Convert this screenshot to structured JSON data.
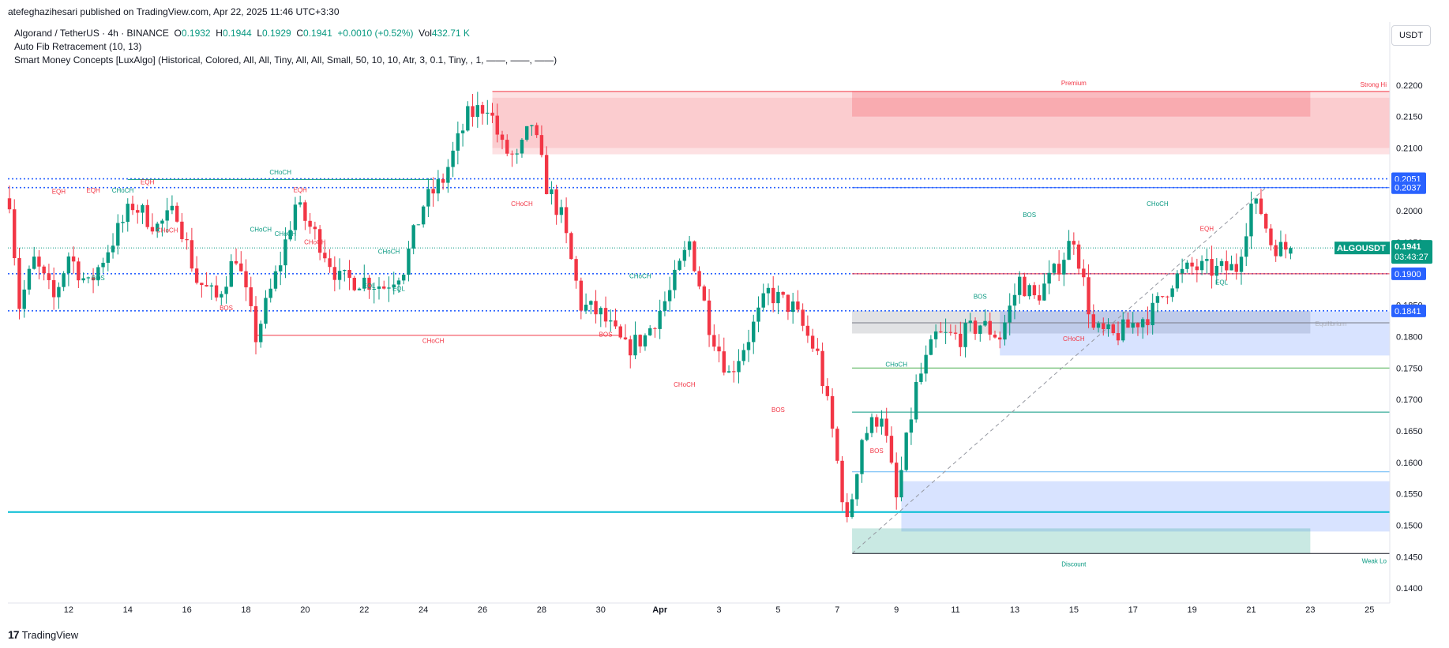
{
  "publisher_line": "atefeghazihesari published on TradingView.com, Apr 22, 2025 11:46 UTC+3:30",
  "legend": {
    "symbol": "Algorand / TetherUS · 4h · BINANCE",
    "o_label": "O",
    "o": "0.1932",
    "h_label": "H",
    "h": "0.1944",
    "l_label": "L",
    "l": "0.1929",
    "c_label": "C",
    "c": "0.1941",
    "change": "+0.0010 (+0.52%)",
    "vol_label": "Vol",
    "vol": "432.71 K",
    "indicator1": "Auto Fib Retracement (10, 13)",
    "indicator2": "Smart Money Concepts [LuxAlgo] (Historical, Colored, All, All, Tiny, All, All, Small, 50, 10, 10, Atr, 3, 0.1, Tiny, , 1, ——, ——, ——)"
  },
  "currency_button": "USDT",
  "footer_brand": "TradingView",
  "footer_mark": "17",
  "colors": {
    "up": "#089981",
    "down": "#f23645",
    "blue": "#2962ff",
    "cyan": "#00bcd4",
    "premium": "#f23645",
    "discount": "#089981",
    "equilibrium": "#787b86"
  },
  "chart_data": {
    "type": "candlestick",
    "symbol": "ALGOUSDT",
    "timeframe": "4h",
    "ylim": [
      0.1375,
      0.2235
    ],
    "y_ticks": [
      "0.2200",
      "0.2150",
      "0.2100",
      "0.2050",
      "0.2000",
      "0.1950",
      "0.1900",
      "0.1850",
      "0.1800",
      "0.1750",
      "0.1700",
      "0.1650",
      "0.1600",
      "0.1550",
      "0.1500",
      "0.1450",
      "0.1400"
    ],
    "x_ticks": [
      {
        "label": "12",
        "i": 12
      },
      {
        "label": "14",
        "i": 24
      },
      {
        "label": "16",
        "i": 36
      },
      {
        "label": "18",
        "i": 48
      },
      {
        "label": "20",
        "i": 60
      },
      {
        "label": "22",
        "i": 72
      },
      {
        "label": "24",
        "i": 84
      },
      {
        "label": "26",
        "i": 96
      },
      {
        "label": "28",
        "i": 108
      },
      {
        "label": "30",
        "i": 120
      },
      {
        "label": "Apr",
        "i": 132
      },
      {
        "label": "3",
        "i": 144
      },
      {
        "label": "5",
        "i": 156
      },
      {
        "label": "7",
        "i": 168
      },
      {
        "label": "9",
        "i": 180
      },
      {
        "label": "11",
        "i": 192
      },
      {
        "label": "13",
        "i": 204
      },
      {
        "label": "15",
        "i": 216
      },
      {
        "label": "17",
        "i": 228
      },
      {
        "label": "19",
        "i": 240
      },
      {
        "label": "21",
        "i": 252
      },
      {
        "label": "23",
        "i": 264
      },
      {
        "label": "25",
        "i": 276
      }
    ],
    "bars_total": 280,
    "path_anchors": [
      [
        0,
        0.202
      ],
      [
        2,
        0.185
      ],
      [
        5,
        0.192
      ],
      [
        9,
        0.186
      ],
      [
        12,
        0.193
      ],
      [
        16,
        0.188
      ],
      [
        20,
        0.194
      ],
      [
        25,
        0.201
      ],
      [
        30,
        0.1975
      ],
      [
        34,
        0.2
      ],
      [
        38,
        0.189
      ],
      [
        42,
        0.186
      ],
      [
        46,
        0.193
      ],
      [
        50,
        0.18
      ],
      [
        55,
        0.192
      ],
      [
        58,
        0.201
      ],
      [
        63,
        0.195
      ],
      [
        67,
        0.189
      ],
      [
        72,
        0.189
      ],
      [
        76,
        0.188
      ],
      [
        80,
        0.191
      ],
      [
        84,
        0.201
      ],
      [
        88,
        0.205
      ],
      [
        93,
        0.215
      ],
      [
        97,
        0.217
      ],
      [
        100,
        0.21
      ],
      [
        103,
        0.208
      ],
      [
        106,
        0.214
      ],
      [
        109,
        0.204
      ],
      [
        112,
        0.199
      ],
      [
        116,
        0.185
      ],
      [
        120,
        0.1835
      ],
      [
        125,
        0.178
      ],
      [
        129,
        0.18
      ],
      [
        134,
        0.187
      ],
      [
        138,
        0.195
      ],
      [
        142,
        0.182
      ],
      [
        146,
        0.174
      ],
      [
        150,
        0.18
      ],
      [
        154,
        0.187
      ],
      [
        159,
        0.1845
      ],
      [
        164,
        0.177
      ],
      [
        167,
        0.165
      ],
      [
        170,
        0.15
      ],
      [
        173,
        0.164
      ],
      [
        177,
        0.168
      ],
      [
        180,
        0.154
      ],
      [
        184,
        0.172
      ],
      [
        188,
        0.18
      ],
      [
        193,
        0.18
      ],
      [
        197,
        0.182
      ],
      [
        201,
        0.18
      ],
      [
        205,
        0.189
      ],
      [
        208,
        0.186
      ],
      [
        212,
        0.19
      ],
      [
        216,
        0.196
      ],
      [
        220,
        0.181
      ],
      [
        224,
        0.18
      ],
      [
        228,
        0.182
      ],
      [
        232,
        0.184
      ],
      [
        236,
        0.189
      ],
      [
        240,
        0.191
      ],
      [
        245,
        0.1905
      ],
      [
        249,
        0.191
      ],
      [
        252,
        0.201
      ],
      [
        254,
        0.2
      ],
      [
        256,
        0.195
      ],
      [
        258,
        0.194
      ],
      [
        260,
        0.1941
      ]
    ],
    "last_close": 0.1941,
    "high_fib": 0.219,
    "low_fib": 0.1455,
    "labels": {
      "premium": "Premium",
      "discount": "Discount",
      "equilibrium": "Equilibrium",
      "strong_high": "Strong Hi",
      "weak_low": "Weak Lo"
    },
    "structures": [
      {
        "text": "CHoCH",
        "color": "up",
        "size": "big",
        "i": 55,
        "y": 0.2058
      },
      {
        "text": "CHoCH",
        "color": "down",
        "size": "big",
        "i": 86,
        "y": 0.179
      },
      {
        "text": "EQH",
        "color": "down",
        "i": 10,
        "y": 0.2027
      },
      {
        "text": "EQH",
        "color": "down",
        "i": 17,
        "y": 0.2029
      },
      {
        "text": "CHoCH",
        "color": "up",
        "i": 23,
        "y": 0.2029
      },
      {
        "text": "EQH",
        "color": "down",
        "i": 28,
        "y": 0.2042
      },
      {
        "text": "CHoCH",
        "color": "down",
        "i": 32,
        "y": 0.1966
      },
      {
        "text": "BOS",
        "color": "up",
        "i": 18,
        "y": 0.189
      },
      {
        "text": "CHoCH",
        "color": "up",
        "i": 51,
        "y": 0.1967
      },
      {
        "text": "BOS",
        "color": "down",
        "i": 44,
        "y": 0.1842
      },
      {
        "text": "EQH",
        "color": "down",
        "i": 59,
        "y": 0.203
      },
      {
        "text": "CHoCH",
        "color": "up",
        "i": 56,
        "y": 0.196
      },
      {
        "text": "CHoCH",
        "color": "down",
        "i": 62,
        "y": 0.1947
      },
      {
        "text": "CHoCH",
        "color": "up",
        "i": 77,
        "y": 0.1932
      },
      {
        "text": "EQL",
        "color": "up",
        "i": 73,
        "y": 0.1877
      },
      {
        "text": "EQL",
        "color": "up",
        "i": 79,
        "y": 0.1873
      },
      {
        "text": "CHoCH",
        "color": "down",
        "i": 104,
        "y": 0.2008
      },
      {
        "text": "CHoCH",
        "color": "up",
        "i": 128,
        "y": 0.1893
      },
      {
        "text": "BOS",
        "color": "down",
        "i": 121,
        "y": 0.18
      },
      {
        "text": "CHoCH",
        "color": "down",
        "i": 137,
        "y": 0.172
      },
      {
        "text": "BOS",
        "color": "down",
        "i": 156,
        "y": 0.168
      },
      {
        "text": "CHoCH",
        "color": "up",
        "i": 180,
        "y": 0.1752
      },
      {
        "text": "BOS",
        "color": "down",
        "i": 176,
        "y": 0.1615
      },
      {
        "text": "BOS",
        "color": "up",
        "i": 197,
        "y": 0.186
      },
      {
        "text": "BOS",
        "color": "up",
        "i": 207,
        "y": 0.199
      },
      {
        "text": "CHoCH",
        "color": "up",
        "i": 233,
        "y": 0.2008
      },
      {
        "text": "CHoCH",
        "color": "down",
        "i": 216,
        "y": 0.1793
      },
      {
        "text": "EQH",
        "color": "down",
        "i": 243,
        "y": 0.1968
      },
      {
        "text": "EQL",
        "color": "up",
        "i": 246,
        "y": 0.1883
      }
    ],
    "price_tags": [
      {
        "text": "0.2051",
        "y": 0.2051,
        "color": "blue"
      },
      {
        "text": "0.2037",
        "y": 0.2037,
        "color": "blue"
      },
      {
        "text": "0.1900",
        "y": 0.19,
        "color": "blue"
      },
      {
        "text": "0.1841",
        "y": 0.1841,
        "color": "blue"
      }
    ],
    "last_price_tag": {
      "symbol": "ALGOUSDT",
      "price": "0.1941",
      "countdown": "03:43:27"
    }
  }
}
